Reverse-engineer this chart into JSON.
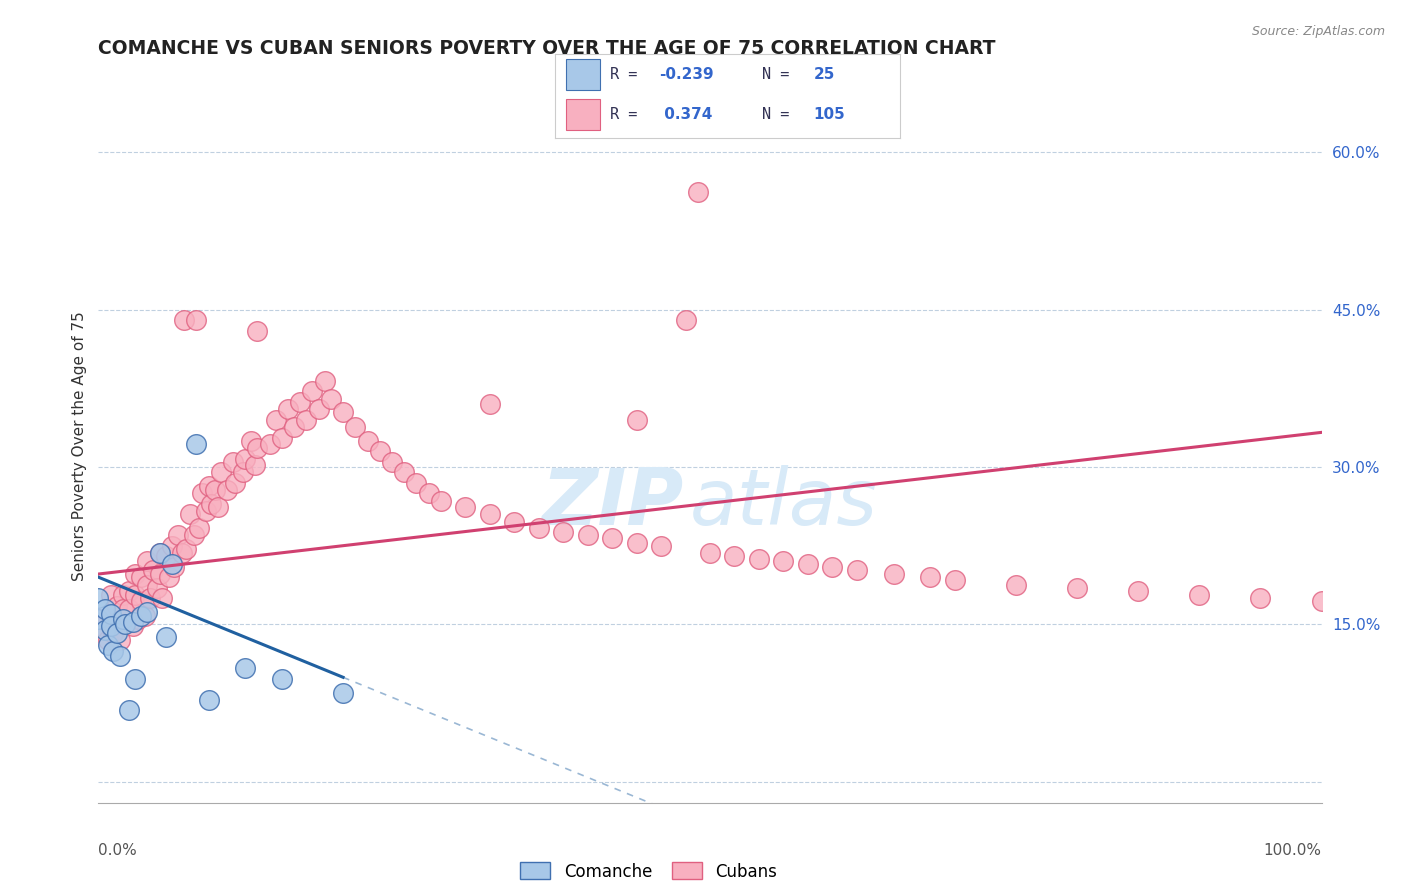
{
  "title": "COMANCHE VS CUBAN SENIORS POVERTY OVER THE AGE OF 75 CORRELATION CHART",
  "source": "Source: ZipAtlas.com",
  "ylabel": "Seniors Poverty Over the Age of 75",
  "xlim": [
    0.0,
    1.0
  ],
  "ylim": [
    -0.02,
    0.66
  ],
  "yticks": [
    0.0,
    0.15,
    0.3,
    0.45,
    0.6
  ],
  "right_yticks": [
    0.15,
    0.3,
    0.45,
    0.6
  ],
  "right_ytick_labels": [
    "15.0%",
    "30.0%",
    "45.0%",
    "60.0%"
  ],
  "comanche_color": "#a8c8e8",
  "comanche_edge": "#4070b0",
  "cubans_color": "#f8b0c0",
  "cubans_edge": "#e06080",
  "comanche_line_color": "#2060a0",
  "cubans_line_color": "#d04070",
  "background_color": "#ffffff",
  "grid_color": "#c0d0e0",
  "title_fontsize": 13.5,
  "axis_fontsize": 11,
  "tick_fontsize": 11,
  "watermark_color": "#d8eaf8",
  "legend_text_color": "#333355",
  "legend_value_color": "#3366cc"
}
